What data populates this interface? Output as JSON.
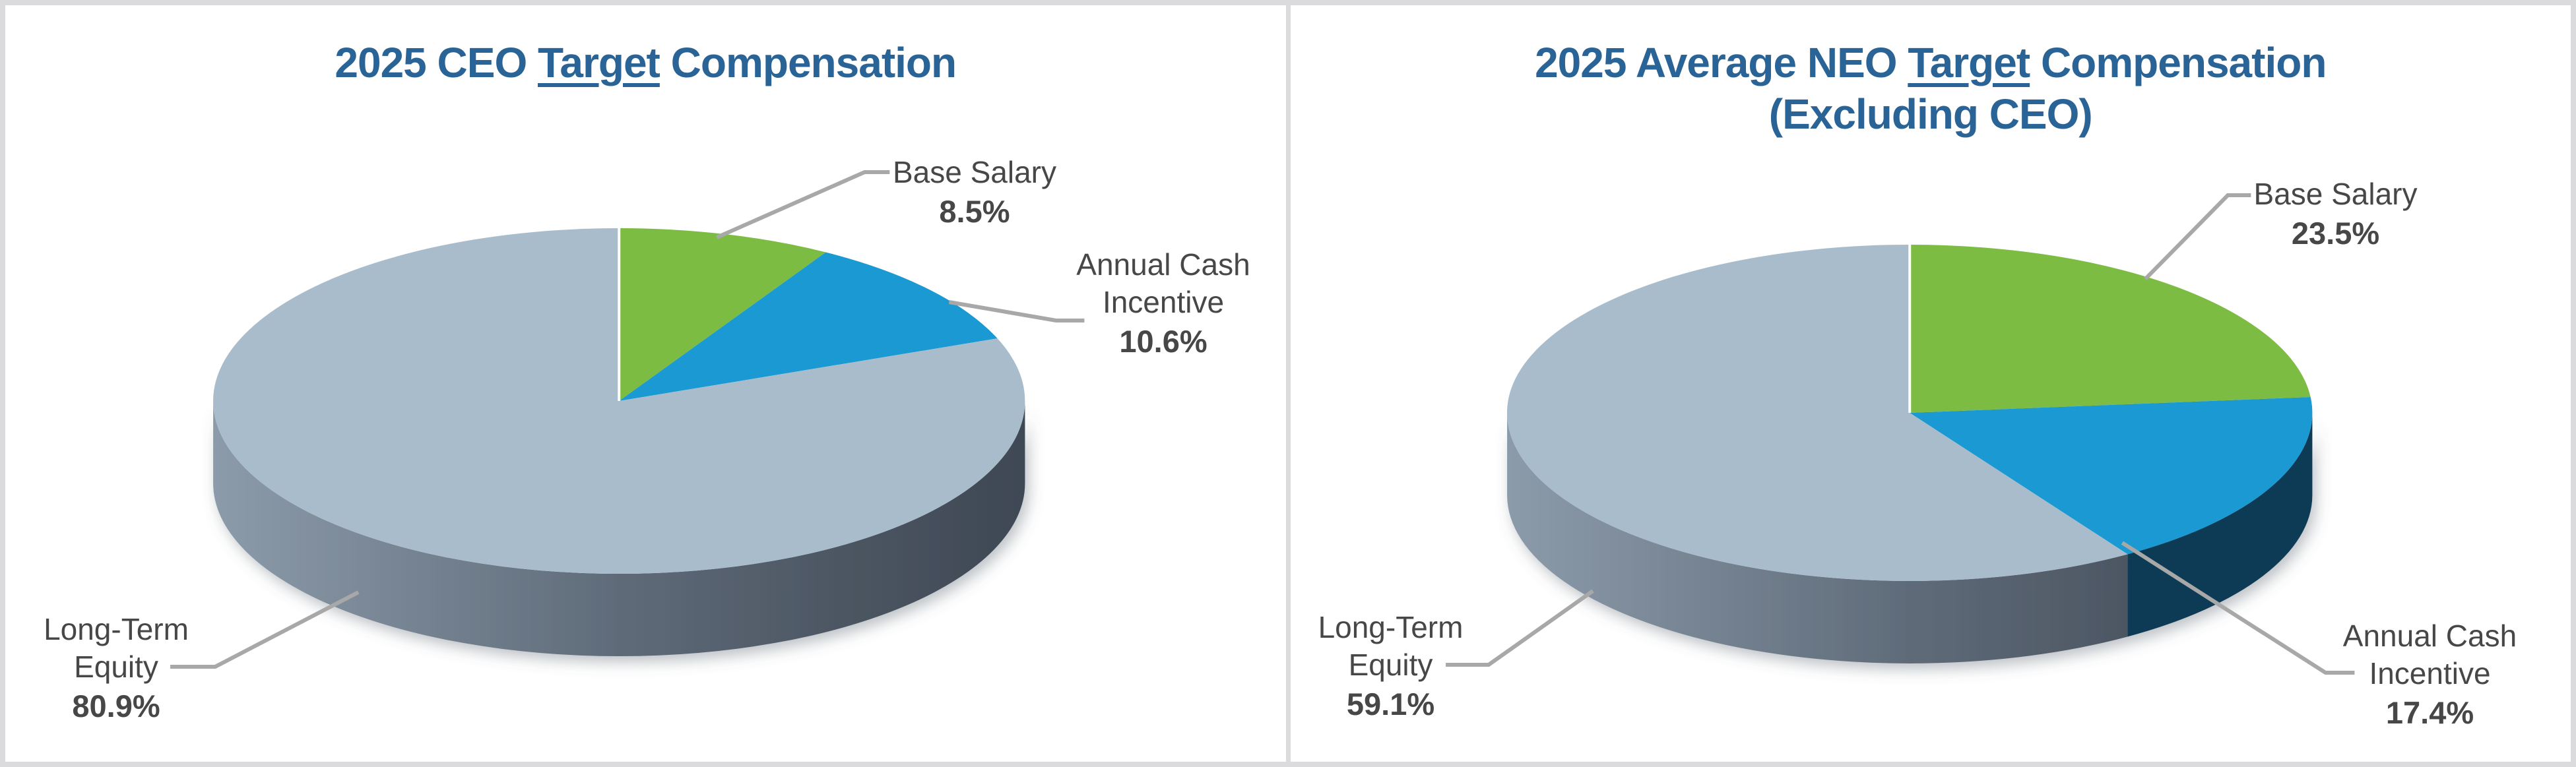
{
  "style": {
    "background": "#FFFFFF",
    "border_color": "#DBDBDD",
    "title_color": "#2A6496",
    "label_color": "#474747",
    "leader_color": "#A8A8A8",
    "gray_side_gradient": [
      "#8C9BAA",
      "#5F6B79",
      "#49535F",
      "#3E4854"
    ]
  },
  "chart_data": [
    {
      "type": "pie",
      "projection": "3d",
      "start_angle": "top",
      "direction": "clockwise",
      "legend": "none",
      "title": {
        "pre": "2025 CEO ",
        "underlined": "Target",
        "post": " Compensation",
        "line2": ""
      },
      "slices": [
        {
          "label": "Base Salary",
          "value": 8.5,
          "pct_text": "8.5%",
          "label_line1": "Base Salary",
          "color": "#7CBC42",
          "side": ""
        },
        {
          "label": "Annual Cash Incentive",
          "value": 10.6,
          "pct_text": "10.6%",
          "label_line1": "Annual Cash",
          "label_line2": "Incentive",
          "color": "#1B99D2",
          "side": ""
        },
        {
          "label": "Long-Term Equity",
          "value": 80.9,
          "pct_text": "80.9%",
          "label_line1": "Long-Term",
          "label_line2": "Equity",
          "color": "#A9BCCC",
          "side": "gradient"
        }
      ]
    },
    {
      "type": "pie",
      "projection": "3d",
      "start_angle": "top",
      "direction": "clockwise",
      "legend": "none",
      "title": {
        "pre": "2025 Average NEO ",
        "underlined": "Target",
        "post": " Compensation",
        "line2": "(Excluding CEO)"
      },
      "slices": [
        {
          "label": "Base Salary",
          "value": 23.5,
          "pct_text": "23.5%",
          "label_line1": "Base Salary",
          "color": "#7CBC42",
          "side": ""
        },
        {
          "label": "Annual Cash Incentive",
          "value": 17.4,
          "pct_text": "17.4%",
          "label_line1": "Annual Cash",
          "label_line2": "Incentive",
          "color": "#1B99D2",
          "side": "#0E3A55"
        },
        {
          "label": "Long-Term Equity",
          "value": 59.1,
          "pct_text": "59.1%",
          "label_line1": "Long-Term",
          "label_line2": "Equity",
          "color": "#A9BCCC",
          "side": "gradient"
        }
      ]
    }
  ]
}
